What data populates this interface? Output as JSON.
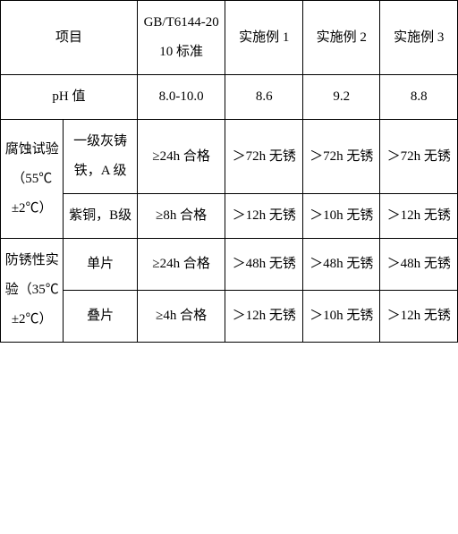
{
  "table": {
    "columns": [
      "col-1",
      "col-2",
      "col-3",
      "col-4",
      "col-5",
      "col-6"
    ],
    "header": {
      "item": "项目",
      "standard": "GB/T6144-2010 标准",
      "ex1": "实施例 1",
      "ex2": "实施例 2",
      "ex3": "实施例 3"
    },
    "rows": {
      "ph": {
        "label": "pH 值",
        "standard": "8.0-10.0",
        "ex1": "8.6",
        "ex2": "9.2",
        "ex3": "8.8"
      },
      "corrosion": {
        "group_label": "腐蚀试验（55℃±2℃）",
        "sub1": {
          "label": "一级灰铸铁，A 级",
          "standard": "≥24h 合格",
          "ex1": "＞72h 无锈",
          "ex2": "＞72h 无锈",
          "ex3": "＞72h 无锈"
        },
        "sub2": {
          "label": "紫铜，B级",
          "standard": "≥8h 合格",
          "ex1": "＞12h 无锈",
          "ex2": "＞10h 无锈",
          "ex3": "＞12h 无锈"
        }
      },
      "rust": {
        "group_label": "防锈性实验（35℃±2℃）",
        "sub1": {
          "label": "单片",
          "standard": "≥24h 合格",
          "ex1": "＞48h 无锈",
          "ex2": "＞48h 无锈",
          "ex3": "＞48h 无锈"
        },
        "sub2": {
          "label": "叠片",
          "standard": "≥4h 合格",
          "ex1": "＞12h 无锈",
          "ex2": "＞10h 无锈",
          "ex3": "＞12h 无锈"
        }
      }
    },
    "style": {
      "border_color": "#000000",
      "background_color": "#ffffff",
      "font_size": 15,
      "line_height": 2.2
    }
  }
}
